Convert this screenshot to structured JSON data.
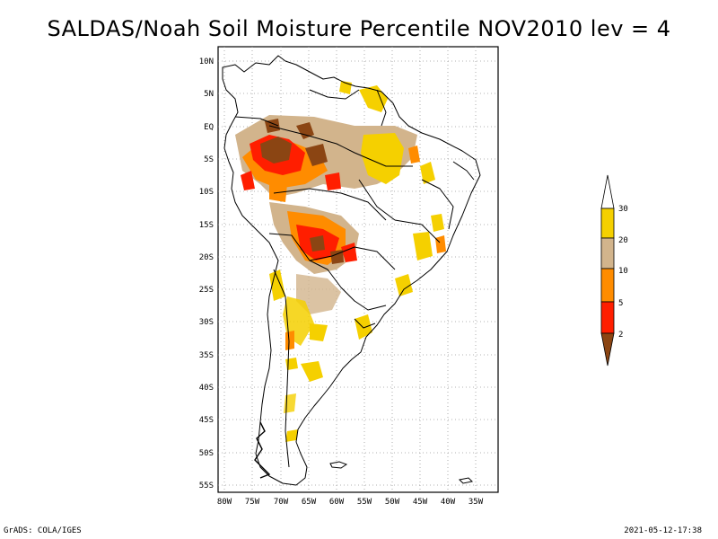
{
  "title": "SALDAS/Noah Soil Moisture Percentile NOV2010 lev = 4",
  "footer_left": "GrADS: COLA/IGES",
  "footer_right": "2021-05-12-17:38",
  "map": {
    "lat_ticks": [
      "10N",
      "5N",
      "EQ",
      "5S",
      "10S",
      "15S",
      "20S",
      "25S",
      "30S",
      "35S",
      "40S",
      "45S",
      "50S",
      "55S"
    ],
    "lon_ticks": [
      "80W",
      "75W",
      "70W",
      "65W",
      "60W",
      "55W",
      "50W",
      "45W",
      "40W",
      "35W"
    ],
    "lat_range": [
      -56,
      12
    ],
    "lon_range": [
      -81,
      -33
    ],
    "grid": true
  },
  "legend": {
    "labels": [
      "30",
      "20",
      "10",
      "5",
      "2"
    ],
    "colors": {
      "above30": "#ffffff",
      "p20_30": "#f5d000",
      "p10_20": "#d2b48c",
      "p5_10": "#ff8c00",
      "p2_5": "#ff1e00",
      "below2": "#8b4513"
    }
  }
}
